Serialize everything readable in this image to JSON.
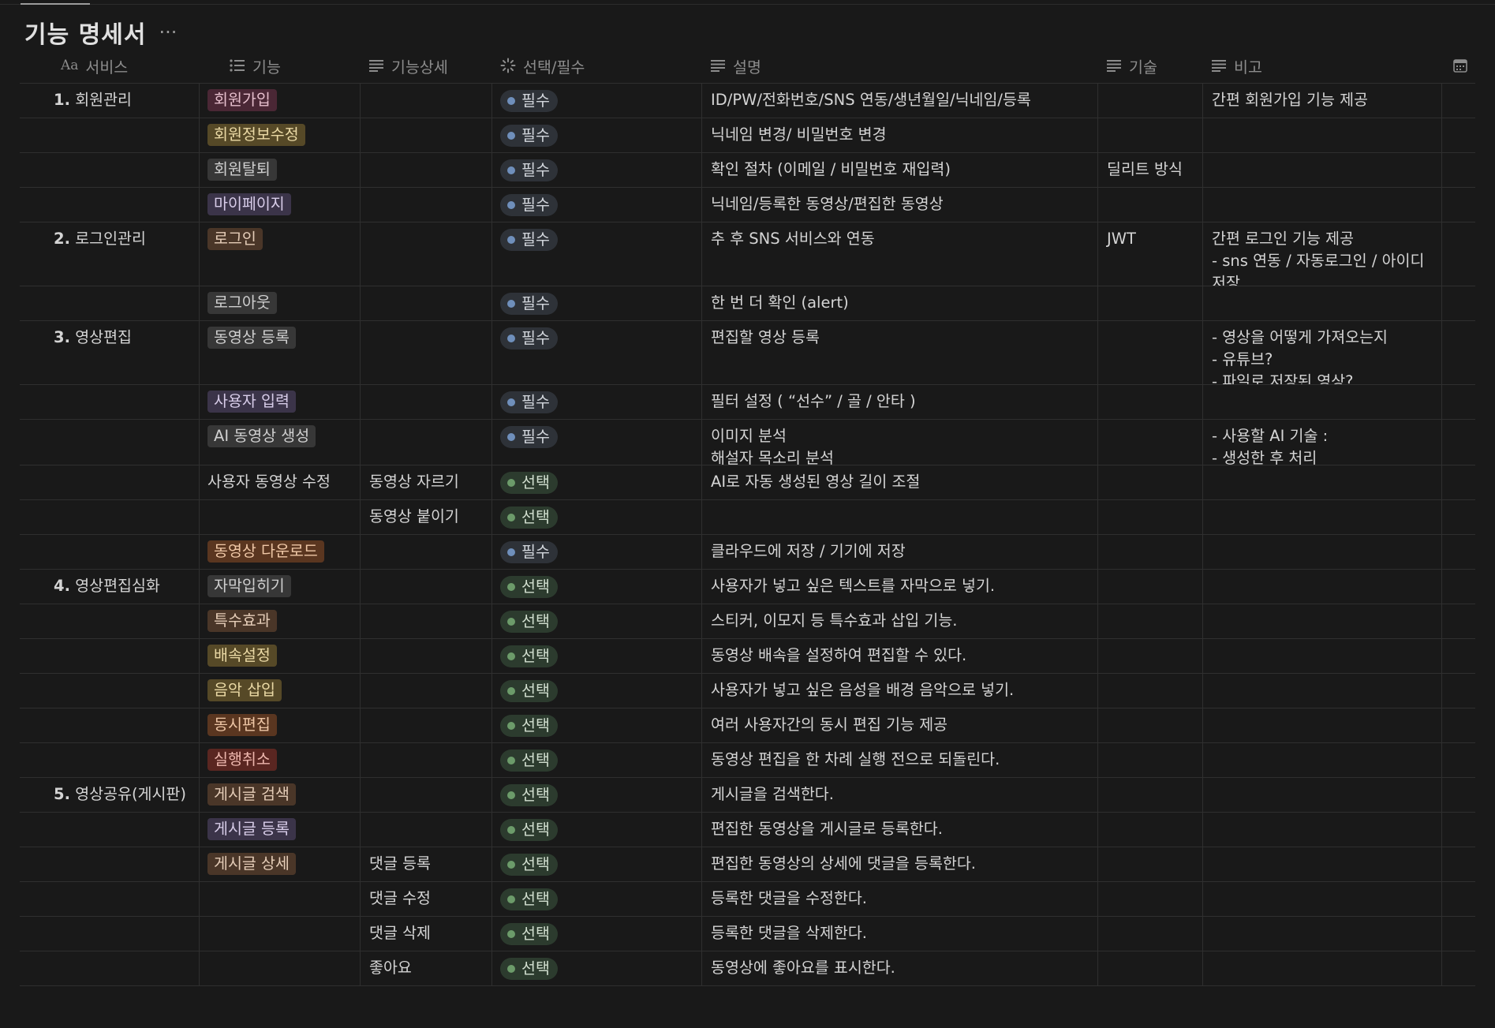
{
  "page": {
    "title": "기능 명세서",
    "more_label": "···"
  },
  "columns": [
    {
      "label": "서비스",
      "icon": "text-type-icon"
    },
    {
      "label": "기능",
      "icon": "list-icon"
    },
    {
      "label": "기능상세",
      "icon": "lines-icon"
    },
    {
      "label": "선택/필수",
      "icon": "status-icon"
    },
    {
      "label": "설명",
      "icon": "lines-icon"
    },
    {
      "label": "기술",
      "icon": "lines-icon"
    },
    {
      "label": "비고",
      "icon": "lines-icon"
    }
  ],
  "rows": [
    {
      "service_num": "1.",
      "service": "회원관리",
      "feature": "회원가입",
      "feature_color": "pink",
      "detail": "",
      "status": "필수",
      "status_type": "req",
      "desc": "ID/PW/전화번호/SNS 연동/생년월일/닉네임/등록",
      "tech": "",
      "note": "간편 회원가입 기능 제공"
    },
    {
      "service_num": "",
      "service": "",
      "feature": "회원정보수정",
      "feature_color": "yellow",
      "detail": "",
      "status": "필수",
      "status_type": "req",
      "desc": "닉네임 변경/ 비밀번호 변경",
      "tech": "",
      "note": ""
    },
    {
      "service_num": "",
      "service": "",
      "feature": "회원탈퇴",
      "feature_color": "gray",
      "detail": "",
      "status": "필수",
      "status_type": "req",
      "desc": "확인 절차 (이메일 / 비밀번호 재입력)",
      "tech": "딜리트 방식",
      "note": ""
    },
    {
      "service_num": "",
      "service": "",
      "feature": "마이페이지",
      "feature_color": "purple",
      "detail": "",
      "status": "필수",
      "status_type": "req",
      "desc": "닉네임/등록한 동영상/편집한 동영상",
      "tech": "",
      "note": ""
    },
    {
      "service_num": "2.",
      "service": "로그인관리",
      "feature": "로그인",
      "feature_color": "brown",
      "detail": "",
      "status": "필수",
      "status_type": "req",
      "desc": "추 후 SNS 서비스와 연동",
      "tech": "JWT",
      "note": "간편 로그인 기능 제공\n- sns 연동 / 자동로그인 / 아이디\n저장"
    },
    {
      "service_num": "",
      "service": "",
      "feature": "로그아웃",
      "feature_color": "gray",
      "detail": "",
      "status": "필수",
      "status_type": "req",
      "desc": "한 번 더 확인 (alert)",
      "tech": "",
      "note": ""
    },
    {
      "service_num": "3.",
      "service": "영상편집",
      "feature": "동영상 등록",
      "feature_color": "gray",
      "detail": "",
      "status": "필수",
      "status_type": "req",
      "desc": "편집할 영상 등록",
      "tech": "",
      "note": "- 영상을 어떻게 가져오는지\n  - 유튜브?\n  - 파일로 저장된 영상?"
    },
    {
      "service_num": "",
      "service": "",
      "feature": "사용자 입력",
      "feature_color": "purple",
      "detail": "",
      "status": "필수",
      "status_type": "req",
      "desc": "필터 설정 ( “선수” / 골 / 안타 )",
      "tech": "",
      "note": ""
    },
    {
      "service_num": "",
      "service": "",
      "feature": "AI 동영상 생성",
      "feature_color": "gray",
      "detail": "",
      "status": "필수",
      "status_type": "req",
      "desc": "이미지 분석\n해설자 목소리 분석",
      "tech": "",
      "note": "- 사용할 AI 기술 :\n- 생성한 후 처리"
    },
    {
      "service_num": "",
      "service": "",
      "feature": "사용자 동영상 수정",
      "feature_color": "none",
      "detail": "동영상 자르기",
      "status": "선택",
      "status_type": "opt",
      "desc": "AI로 자동 생성된 영상 길이 조절",
      "tech": "",
      "note": ""
    },
    {
      "service_num": "",
      "service": "",
      "feature": "",
      "feature_color": "none",
      "detail": "동영상 붙이기",
      "status": "선택",
      "status_type": "opt",
      "desc": "",
      "tech": "",
      "note": ""
    },
    {
      "service_num": "",
      "service": "",
      "feature": "동영상 다운로드",
      "feature_color": "orange",
      "detail": "",
      "status": "필수",
      "status_type": "req",
      "desc": "클라우드에 저장 / 기기에 저장",
      "tech": "",
      "note": ""
    },
    {
      "service_num": "4.",
      "service": "영상편집심화",
      "feature": "자막입히기",
      "feature_color": "gray",
      "detail": "",
      "status": "선택",
      "status_type": "opt",
      "desc": "사용자가 넣고 싶은 텍스트를 자막으로 넣기.",
      "tech": "",
      "note": ""
    },
    {
      "service_num": "",
      "service": "",
      "feature": "특수효과",
      "feature_color": "brown",
      "detail": "",
      "status": "선택",
      "status_type": "opt",
      "desc": "스티커, 이모지 등 특수효과 삽입 기능.",
      "tech": "",
      "note": ""
    },
    {
      "service_num": "",
      "service": "",
      "feature": "배속설정",
      "feature_color": "yellow",
      "detail": "",
      "status": "선택",
      "status_type": "opt",
      "desc": "동영상 배속을 설정하여 편집할 수 있다.",
      "tech": "",
      "note": ""
    },
    {
      "service_num": "",
      "service": "",
      "feature": "음악 삽입",
      "feature_color": "yellow",
      "detail": "",
      "status": "선택",
      "status_type": "opt",
      "desc": "사용자가 넣고 싶은 음성을 배경 음악으로 넣기.",
      "tech": "",
      "note": ""
    },
    {
      "service_num": "",
      "service": "",
      "feature": "동시편집",
      "feature_color": "orange",
      "detail": "",
      "status": "선택",
      "status_type": "opt",
      "desc": "여러 사용자간의 동시 편집 기능 제공",
      "tech": "",
      "note": ""
    },
    {
      "service_num": "",
      "service": "",
      "feature": "실행취소",
      "feature_color": "red",
      "detail": "",
      "status": "선택",
      "status_type": "opt",
      "desc": "동영상 편집을 한 차례 실행 전으로 되돌린다.",
      "tech": "",
      "note": ""
    },
    {
      "service_num": "5.",
      "service": "영상공유(게시판)",
      "feature": "게시글 검색",
      "feature_color": "brown",
      "detail": "",
      "status": "선택",
      "status_type": "opt",
      "desc": "게시글을 검색한다.",
      "tech": "",
      "note": ""
    },
    {
      "service_num": "",
      "service": "",
      "feature": "게시글 등록",
      "feature_color": "purple",
      "detail": "",
      "status": "선택",
      "status_type": "opt",
      "desc": "편집한 동영상을 게시글로 등록한다.",
      "tech": "",
      "note": ""
    },
    {
      "service_num": "",
      "service": "",
      "feature": "게시글 상세",
      "feature_color": "brown",
      "detail": "댓글 등록",
      "status": "선택",
      "status_type": "opt",
      "desc": "편집한 동영상의 상세에 댓글을 등록한다.",
      "tech": "",
      "note": ""
    },
    {
      "service_num": "",
      "service": "",
      "feature": "",
      "feature_color": "none",
      "detail": "댓글 수정",
      "status": "선택",
      "status_type": "opt",
      "desc": "등록한 댓글을 수정한다.",
      "tech": "",
      "note": ""
    },
    {
      "service_num": "",
      "service": "",
      "feature": "",
      "feature_color": "none",
      "detail": "댓글 삭제",
      "status": "선택",
      "status_type": "opt",
      "desc": "등록한 댓글을 삭제한다.",
      "tech": "",
      "note": ""
    },
    {
      "service_num": "",
      "service": "",
      "feature": "",
      "feature_color": "none",
      "detail": "좋아요",
      "status": "선택",
      "status_type": "opt",
      "desc": "동영상에 좋아요를 표시한다.",
      "tech": "",
      "note": ""
    }
  ]
}
